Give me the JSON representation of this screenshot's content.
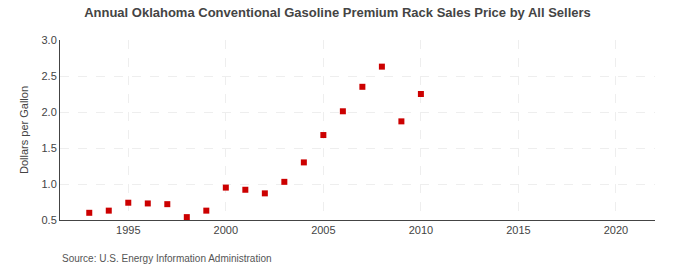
{
  "chart_data": {
    "type": "scatter",
    "title": "Annual Oklahoma Conventional Gasoline Premium Rack Sales Price by All Sellers",
    "ylabel": "Dollars per Gallon",
    "annotations": [
      "Source: U.S. Energy Information Administration"
    ],
    "x": [
      1993,
      1994,
      1995,
      1996,
      1997,
      1998,
      1999,
      2000,
      2001,
      2002,
      2003,
      2004,
      2005,
      2006,
      2007,
      2008,
      2009,
      2010
    ],
    "values": [
      0.6,
      0.63,
      0.74,
      0.73,
      0.72,
      0.54,
      0.63,
      0.95,
      0.92,
      0.87,
      1.03,
      1.3,
      1.68,
      2.01,
      2.35,
      2.63,
      1.87,
      2.25
    ],
    "color": "#cc0000",
    "marker": "square",
    "xlim": [
      1991.5,
      2022
    ],
    "ylim": [
      0.5,
      3.0
    ],
    "xticks": [
      1995,
      2000,
      2005,
      2010,
      2015,
      2020
    ],
    "yticks": [
      0.5,
      {
        "value": 1.0,
        "label": "1.0"
      },
      1.5,
      {
        "value": 2.0,
        "label": "2.0"
      },
      2.5,
      {
        "value": 3.0,
        "label": "3.0"
      }
    ],
    "grid": true
  }
}
